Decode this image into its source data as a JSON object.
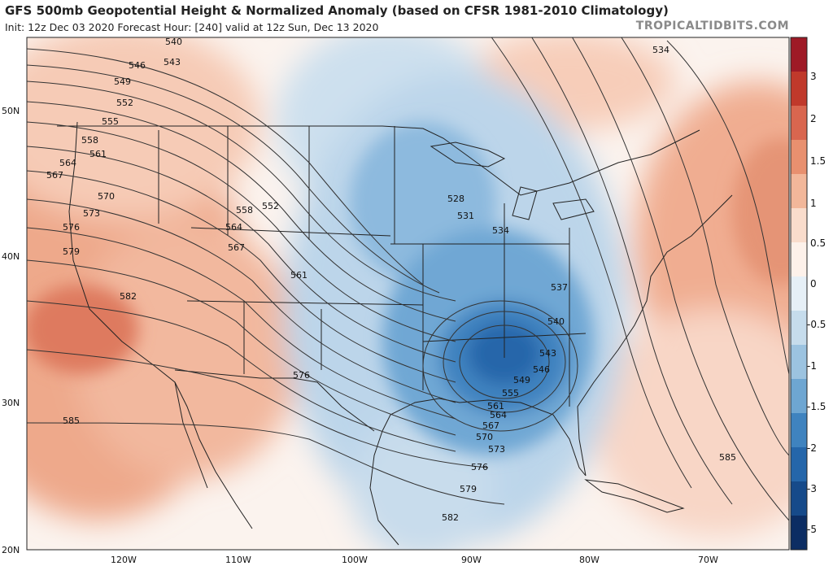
{
  "header": {
    "title": "GFS 500mb Geopotential Height & Normalized Anomaly (based on CFSR 1981-2010 Climatology)",
    "subtitle": "Init: 12z Dec 03 2020   Forecast Hour: [240]   valid at 12z Sun, Dec 13 2020",
    "brand": "TROPICALTIDBITS.COM"
  },
  "axes": {
    "lat_labels": [
      "50N",
      "40N",
      "30N",
      "20N"
    ],
    "lon_labels": [
      "120W",
      "110W",
      "100W",
      "90W",
      "80W",
      "70W"
    ]
  },
  "colorbar": {
    "labels": [
      "3",
      "2",
      "1.5",
      "1",
      "0.5",
      "0",
      "-0.5",
      "-1",
      "-1.5",
      "-2",
      "-3",
      "-5"
    ],
    "colors": [
      "#9e1a26",
      "#c0392b",
      "#d9664f",
      "#e8906f",
      "#f2b79a",
      "#f9dccc",
      "#fdf1ea",
      "#e6eff6",
      "#c6dcec",
      "#9cc3e0",
      "#6ea6d2",
      "#3f83bf",
      "#2566aa",
      "#164a8a",
      "#0c2d63"
    ]
  },
  "contours": {
    "labels": [
      "540",
      "543",
      "546",
      "549",
      "552",
      "555",
      "558",
      "561",
      "564",
      "567",
      "570",
      "573",
      "576",
      "579",
      "582",
      "585",
      "552",
      "558",
      "564",
      "567",
      "561",
      "576",
      "528",
      "531",
      "534",
      "537",
      "540",
      "543",
      "546",
      "549",
      "555",
      "561",
      "564",
      "567",
      "570",
      "573",
      "576",
      "579",
      "582",
      "585",
      "534"
    ]
  },
  "colors": {
    "background": "#ffffff",
    "neutral": "#fbf3ee",
    "border": "#222222",
    "contour": "#333333"
  }
}
